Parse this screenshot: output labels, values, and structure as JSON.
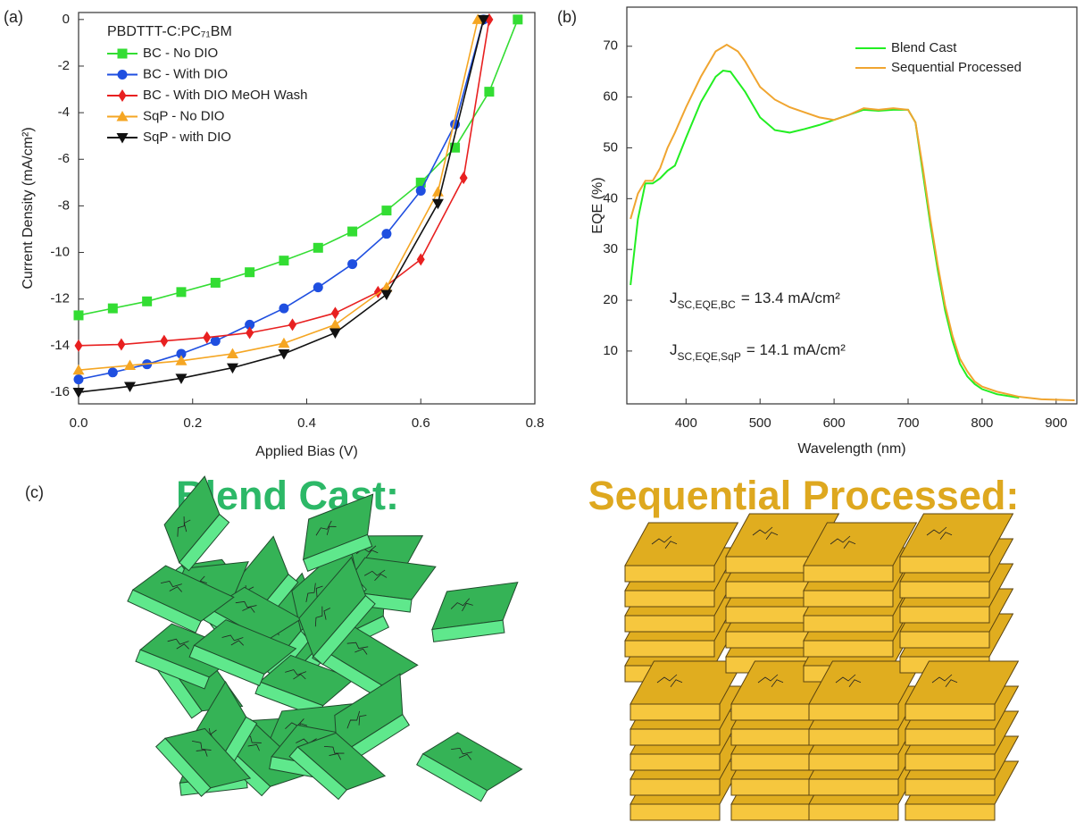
{
  "panel_labels": [
    "(a)",
    "(b)",
    "(c)"
  ],
  "chart_data": [
    {
      "type": "line",
      "xlabel": "Applied Bias (V)",
      "ylabel": "Current Density (mA/cm²)",
      "legend_title": "PBDTTT-C:PC₇₁BM",
      "legend": "upper left",
      "xlim": [
        0,
        0.8
      ],
      "ylim": [
        -16.5,
        0.3
      ],
      "xticks": [
        {
          "value": 0,
          "label": "0.0"
        },
        0.2,
        0.4,
        0.6,
        0.8
      ],
      "yticks": [
        0,
        -2,
        -4,
        -6,
        -8,
        -10,
        -12,
        -14,
        -16
      ],
      "series": [
        {
          "name": "BC - No DIO",
          "color": "#33dd33",
          "marker": "square",
          "x": [
            0,
            0.06,
            0.12,
            0.18,
            0.24,
            0.3,
            0.36,
            0.42,
            0.48,
            0.54,
            0.6,
            0.66,
            0.72,
            0.77
          ],
          "values": [
            -12.7,
            -12.4,
            -12.1,
            -11.7,
            -11.3,
            -10.85,
            -10.35,
            -9.8,
            -9.1,
            -8.2,
            -7.0,
            -5.5,
            -3.1,
            0
          ]
        },
        {
          "name": "BC - With DIO",
          "color": "#1f4fe0",
          "marker": "circle",
          "x": [
            0,
            0.06,
            0.12,
            0.18,
            0.24,
            0.3,
            0.36,
            0.42,
            0.48,
            0.54,
            0.6,
            0.66,
            0.71
          ],
          "values": [
            -15.45,
            -15.15,
            -14.8,
            -14.35,
            -13.8,
            -13.1,
            -12.4,
            -11.5,
            -10.5,
            -9.2,
            -7.35,
            -4.5,
            0
          ]
        },
        {
          "name": "BC - With DIO MeOH Wash",
          "color": "#e82020",
          "marker": "diamond",
          "x": [
            0,
            0.075,
            0.15,
            0.225,
            0.3,
            0.375,
            0.45,
            0.525,
            0.6,
            0.675,
            0.72
          ],
          "values": [
            -14.0,
            -13.95,
            -13.8,
            -13.65,
            -13.45,
            -13.1,
            -12.6,
            -11.7,
            -10.3,
            -6.8,
            0
          ]
        },
        {
          "name": "SqP - No DIO",
          "color": "#f5a623",
          "marker": "triangle-up",
          "x": [
            0,
            0.09,
            0.18,
            0.27,
            0.36,
            0.45,
            0.54,
            0.63,
            0.7
          ],
          "values": [
            -15.05,
            -14.85,
            -14.65,
            -14.35,
            -13.9,
            -13.1,
            -11.5,
            -7.4,
            0
          ]
        },
        {
          "name": "SqP - with DIO",
          "color": "#111111",
          "marker": "triangle-down",
          "x": [
            0,
            0.09,
            0.18,
            0.27,
            0.36,
            0.45,
            0.54,
            0.63,
            0.71
          ],
          "values": [
            -16.0,
            -15.75,
            -15.4,
            -14.95,
            -14.35,
            -13.45,
            -11.8,
            -7.9,
            0
          ]
        }
      ]
    },
    {
      "type": "line",
      "xlabel": "Wavelength (nm)",
      "ylabel": "EQE (%)",
      "legend": "upper right",
      "xlim": [
        320,
        928
      ],
      "ylim": [
        -0.4,
        77.7
      ],
      "xticks": [
        400,
        500,
        600,
        700,
        800,
        900
      ],
      "yticks": [
        10,
        20,
        30,
        40,
        50,
        60,
        70
      ],
      "series": [
        {
          "name": "Blend Cast",
          "color": "#22ee22",
          "x": [
            325,
            335,
            345,
            355,
            365,
            375,
            385,
            400,
            420,
            440,
            450,
            460,
            480,
            500,
            520,
            540,
            560,
            580,
            600,
            620,
            640,
            660,
            680,
            700,
            710,
            720,
            730,
            740,
            750,
            760,
            770,
            780,
            790,
            800,
            820,
            850
          ],
          "values": [
            23,
            36,
            43,
            43,
            44,
            45.5,
            46.5,
            52,
            59,
            64,
            65.2,
            65,
            61,
            56,
            53.5,
            53,
            53.7,
            54.5,
            55.5,
            56.5,
            57.5,
            57.3,
            57.5,
            57.5,
            55,
            45,
            35,
            26,
            18,
            12,
            7.5,
            5,
            3.5,
            2.5,
            1.5,
            0.8
          ]
        },
        {
          "name": "Sequential Processed",
          "color": "#f0a530",
          "x": [
            325,
            335,
            345,
            355,
            365,
            375,
            385,
            400,
            420,
            440,
            455,
            470,
            480,
            500,
            520,
            540,
            560,
            580,
            600,
            620,
            640,
            660,
            680,
            700,
            710,
            720,
            730,
            740,
            750,
            760,
            770,
            780,
            790,
            800,
            820,
            850,
            880,
            925
          ],
          "values": [
            36,
            41,
            43.5,
            43.5,
            46,
            50,
            53,
            58,
            64,
            69,
            70.3,
            69,
            67,
            62,
            59.5,
            58,
            57,
            56,
            55.5,
            56.5,
            57.8,
            57.5,
            57.8,
            57.5,
            55,
            46,
            36,
            27,
            19,
            13,
            8.5,
            6,
            4,
            3,
            2,
            1,
            0.5,
            0.3
          ]
        }
      ],
      "annotations": [
        {
          "text": "J",
          "subscript": "SC,EQE,BC",
          "suffix": "= 13.4 mA/cm²"
        },
        {
          "text": "J",
          "subscript": "SC,EQE,SqP",
          "suffix": "= 14.1 mA/cm²"
        }
      ]
    }
  ],
  "illustration": {
    "titles": [
      "Blend Cast:",
      "Sequential Processed:"
    ]
  }
}
